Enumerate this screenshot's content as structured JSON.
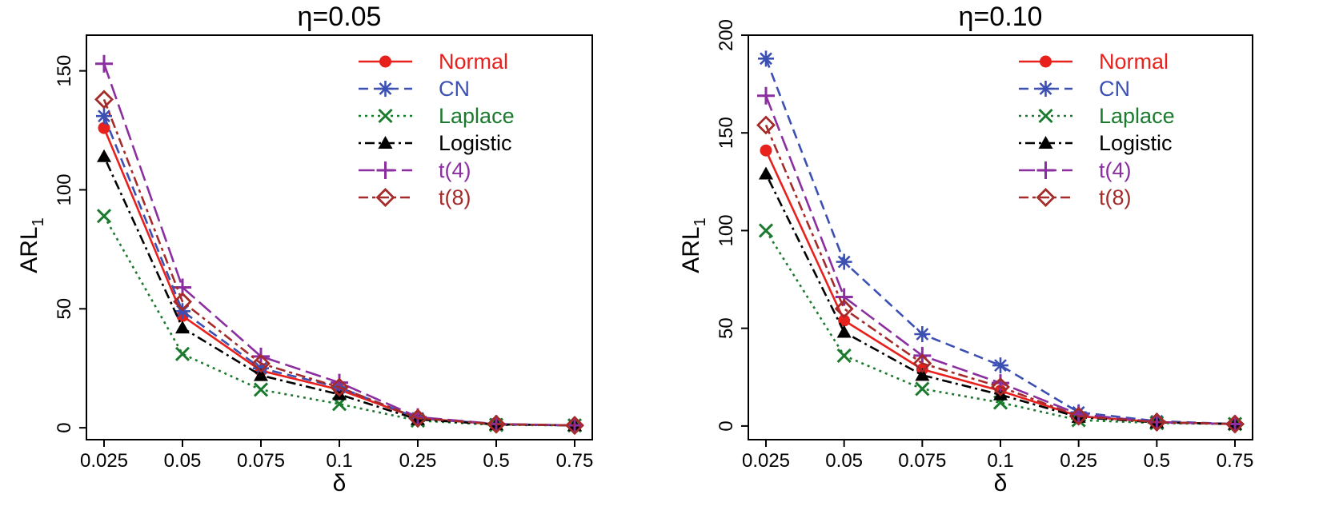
{
  "chart_data": [
    {
      "type": "line",
      "title": "η=0.05",
      "xlabel": "δ",
      "ylabel": "ARL",
      "ylabel_subscript": "1",
      "categories": [
        "0.025",
        "0.05",
        "0.075",
        "0.1",
        "0.25",
        "0.5",
        "0.75"
      ],
      "ylim": [
        -5,
        165
      ],
      "yticks": [
        0,
        50,
        100,
        150
      ],
      "grid": false,
      "legend_position": "top-right",
      "series": [
        {
          "name": "Normal",
          "color": "#e8211d",
          "dash": "solid",
          "marker": "circle",
          "values": [
            126,
            47,
            24,
            16,
            4,
            1.5,
            1
          ]
        },
        {
          "name": "CN",
          "color": "#3c50b4",
          "dash": "dashed",
          "marker": "asterisk",
          "values": [
            131,
            49,
            25,
            17,
            4,
            1.5,
            1
          ]
        },
        {
          "name": "Laplace",
          "color": "#1b7a2e",
          "dash": "dotted",
          "marker": "x",
          "values": [
            89,
            31,
            16,
            10,
            3,
            1.2,
            1
          ]
        },
        {
          "name": "Logistic",
          "color": "#000000",
          "dash": "dotdash",
          "marker": "triangle",
          "values": [
            114,
            42,
            22,
            14,
            3.5,
            1.4,
            1
          ]
        },
        {
          "name": "t(4)",
          "color": "#8a2ea0",
          "dash": "longdash",
          "marker": "plus",
          "values": [
            153,
            59,
            30,
            19,
            4.5,
            1.6,
            1
          ]
        },
        {
          "name": "t(8)",
          "color": "#a52a2a",
          "dash": "twodash",
          "marker": "diamond",
          "values": [
            138,
            53,
            27,
            17,
            4,
            1.5,
            1
          ]
        }
      ]
    },
    {
      "type": "line",
      "title": "η=0.10",
      "xlabel": "δ",
      "ylabel": "ARL",
      "ylabel_subscript": "1",
      "categories": [
        "0.025",
        "0.05",
        "0.075",
        "0.1",
        "0.25",
        "0.5",
        "0.75"
      ],
      "ylim": [
        -7,
        200
      ],
      "yticks": [
        0,
        50,
        100,
        150,
        200
      ],
      "grid": false,
      "legend_position": "top-right",
      "series": [
        {
          "name": "Normal",
          "color": "#e8211d",
          "dash": "solid",
          "marker": "circle",
          "values": [
            141,
            54,
            29,
            18,
            5,
            2,
            1
          ]
        },
        {
          "name": "CN",
          "color": "#3c50b4",
          "dash": "dashed",
          "marker": "asterisk",
          "values": [
            188,
            84,
            47,
            31,
            7,
            2.5,
            1
          ]
        },
        {
          "name": "Laplace",
          "color": "#1b7a2e",
          "dash": "dotted",
          "marker": "x",
          "values": [
            100,
            36,
            19,
            12,
            3,
            1.5,
            1
          ]
        },
        {
          "name": "Logistic",
          "color": "#000000",
          "dash": "dotdash",
          "marker": "triangle",
          "values": [
            129,
            48,
            26,
            16,
            4.5,
            1.8,
            1
          ]
        },
        {
          "name": "t(4)",
          "color": "#8a2ea0",
          "dash": "longdash",
          "marker": "plus",
          "values": [
            169,
            66,
            36,
            22,
            6,
            2,
            1
          ]
        },
        {
          "name": "t(8)",
          "color": "#a52a2a",
          "dash": "twodash",
          "marker": "diamond",
          "values": [
            154,
            60,
            32,
            20,
            5,
            2,
            1
          ]
        }
      ]
    }
  ]
}
